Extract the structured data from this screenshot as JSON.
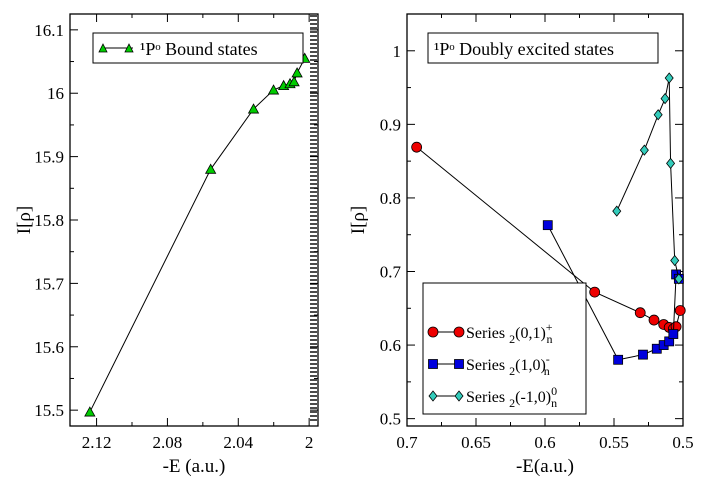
{
  "colors": {
    "bound": "#00cc00",
    "series_plus": "#ee0000",
    "series_minus": "#0000dd",
    "series_zero": "#33ccbb",
    "line": "#000000"
  },
  "chart_data": [
    {
      "type": "line",
      "legend_title": "",
      "ylabel": "I[ρ]",
      "xlabel": "-E (a.u.)",
      "xlim": [
        2.135,
        1.995
      ],
      "ylim": [
        15.475,
        16.125
      ],
      "xticks": [
        2.12,
        2.08,
        2.04,
        2.0
      ],
      "xtick_labels": [
        "2.12",
        "2.08",
        "2.04",
        "2"
      ],
      "yticks": [
        15.5,
        15.6,
        15.7,
        15.8,
        15.9,
        16.0,
        16.1
      ],
      "ytick_labels": [
        "15.5",
        "15.6",
        "15.7",
        "15.8",
        "15.9",
        "16",
        "16.1"
      ],
      "series": [
        {
          "name": "¹Pᵒ Bound states",
          "marker": "triangle",
          "x": [
            2.1238,
            2.0556,
            2.0314,
            2.0201,
            2.0144,
            2.0108,
            2.0085,
            2.0068,
            2.0025
          ],
          "y": [
            15.497,
            15.88,
            15.975,
            16.005,
            16.012,
            16.015,
            16.018,
            16.032,
            16.055
          ]
        }
      ],
      "legend": [
        {
          "label": "¹Pᵒ  Bound states"
        }
      ]
    },
    {
      "type": "line",
      "legend_title": "¹Pᵒ Doubly excited states",
      "ylabel": "I[ρ]",
      "xlabel": "-E(a.u.)",
      "xlim": [
        0.7,
        0.5
      ],
      "ylim": [
        0.49,
        1.05
      ],
      "xticks": [
        0.7,
        0.65,
        0.6,
        0.55,
        0.5
      ],
      "xtick_labels": [
        "0.7",
        "0.65",
        "0.6",
        "0.55",
        "0.5"
      ],
      "yticks": [
        0.5,
        0.6,
        0.7,
        0.8,
        0.9,
        1.0
      ],
      "ytick_labels": [
        "0.5",
        "0.6",
        "0.7",
        "0.8",
        "0.9",
        "1"
      ],
      "series": [
        {
          "name": "Series 2(0,1)n+",
          "marker": "circle",
          "x": [
            0.693,
            0.564,
            0.531,
            0.521,
            0.514,
            0.51,
            0.507,
            0.505,
            0.502
          ],
          "y": [
            0.869,
            0.672,
            0.644,
            0.634,
            0.628,
            0.624,
            0.622,
            0.625,
            0.647
          ]
        },
        {
          "name": "Series 2(1,0)n-",
          "marker": "square",
          "x": [
            0.598,
            0.547,
            0.529,
            0.519,
            0.514,
            0.51,
            0.507,
            0.505,
            0.503
          ],
          "y": [
            0.763,
            0.58,
            0.587,
            0.595,
            0.6,
            0.605,
            0.615,
            0.696,
            0.69
          ]
        },
        {
          "name": "Series 2(-1,0)n0",
          "marker": "diamond",
          "x": [
            0.548,
            0.528,
            0.518,
            0.513,
            0.51,
            0.509,
            0.506,
            0.503
          ],
          "y": [
            0.782,
            0.865,
            0.913,
            0.935,
            0.963,
            0.847,
            0.715,
            0.69
          ]
        }
      ],
      "legend": [
        {
          "base": "Series ",
          "sub": "2",
          "mid": "(0,1)",
          "sup": "+",
          "sub2": "n"
        },
        {
          "base": "Series ",
          "sub": "2",
          "mid": "(1,0)",
          "sup": "-",
          "sub2": "n"
        },
        {
          "base": "Series ",
          "sub": "2",
          "mid": "(-1,0)",
          "sup": "0",
          "sub2": "n"
        }
      ]
    }
  ]
}
